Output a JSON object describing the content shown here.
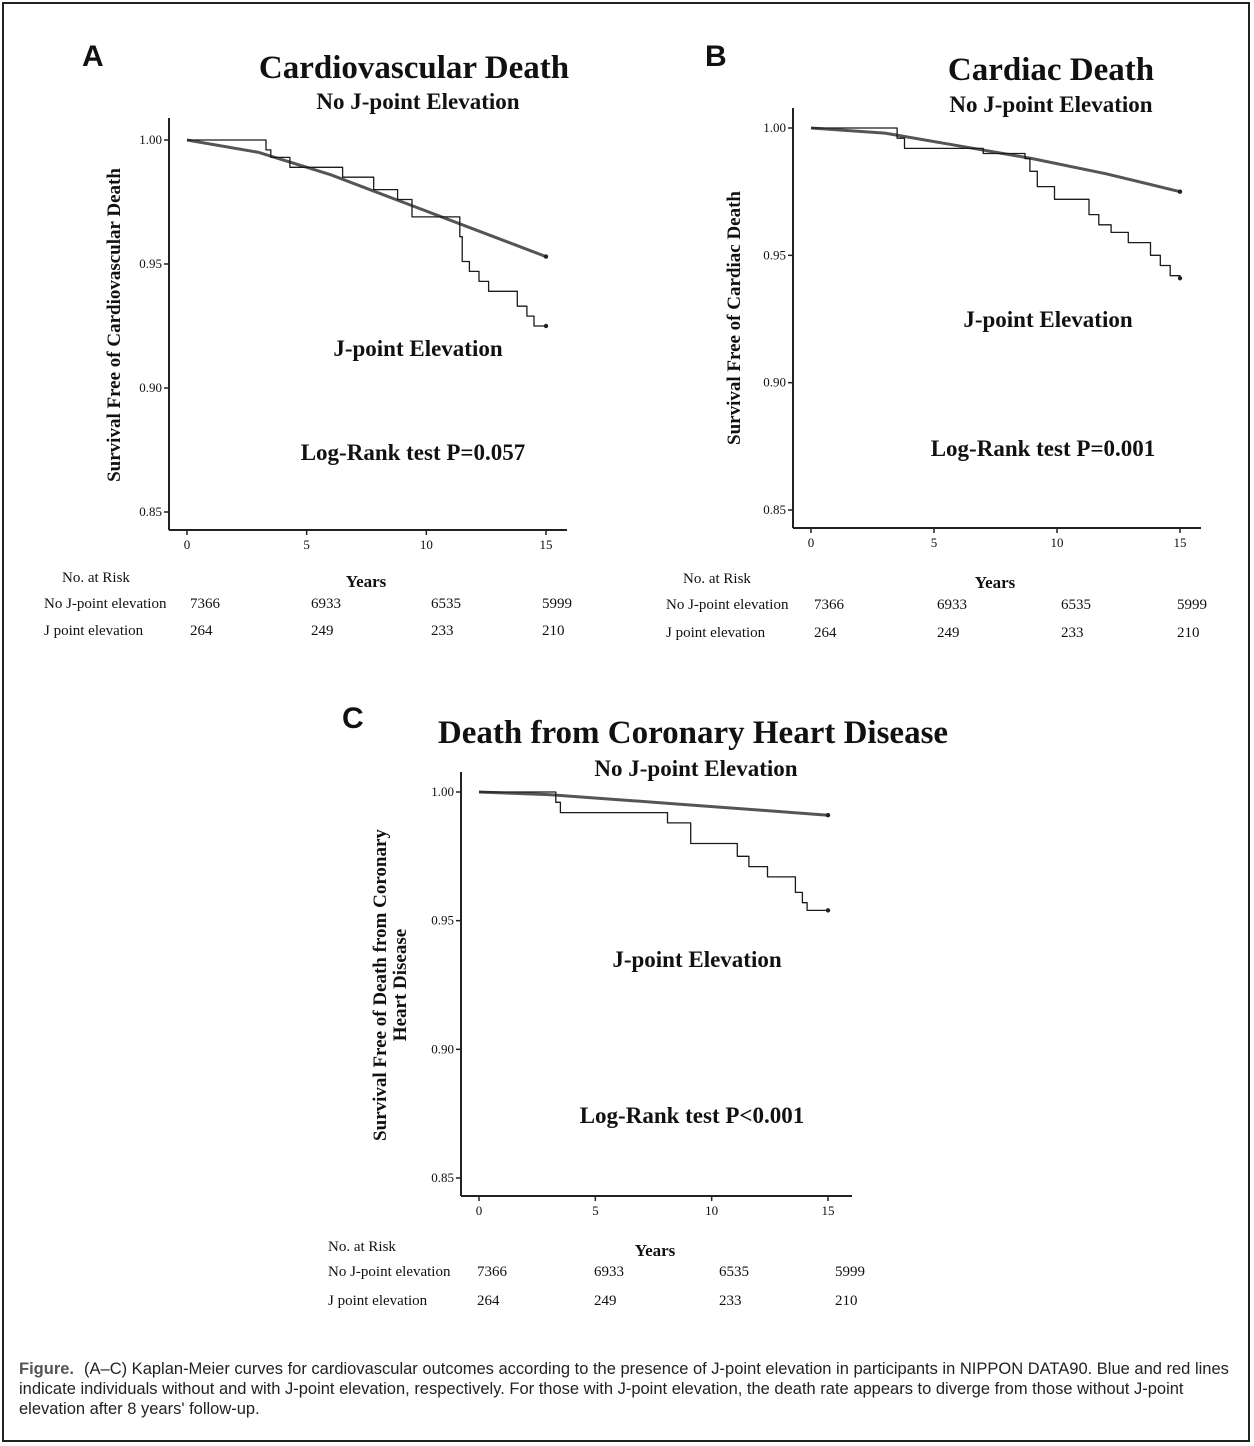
{
  "caption": {
    "lead": "Figure.",
    "text": "(A–C) Kaplan-Meier curves for cardiovascular outcomes according to the presence of J-point elevation in participants in NIPPON DATA90. Blue and red lines indicate individuals without and with J-point elevation, respectively. For those with J-point elevation, the death rate appears to diverge from those without J-point elevation after 8 years' follow-up."
  },
  "chart_data": [
    {
      "type": "line",
      "panel_label": "A",
      "title": "Cardiovascular Death",
      "xlabel": "Years",
      "ylabel": "Survival Free of Cardiovascular Death",
      "xlim": [
        0,
        15
      ],
      "ylim": [
        0.85,
        1.0
      ],
      "x_ticks": [
        "0",
        "5",
        "10",
        "15"
      ],
      "y_ticks": [
        "0.85",
        "0.90",
        "0.95",
        "1.00"
      ],
      "series": [
        {
          "name": "No J-point Elevation",
          "step": false,
          "points": [
            [
              0,
              1.0
            ],
            [
              3,
              0.995
            ],
            [
              6,
              0.986
            ],
            [
              9,
              0.975
            ],
            [
              12,
              0.964
            ],
            [
              15,
              0.953
            ]
          ]
        },
        {
          "name": "J-point Elevation",
          "step": true,
          "points": [
            [
              0,
              1.0
            ],
            [
              3.3,
              0.996
            ],
            [
              3.5,
              0.993
            ],
            [
              4.3,
              0.989
            ],
            [
              6.5,
              0.985
            ],
            [
              7.8,
              0.98
            ],
            [
              8.8,
              0.976
            ],
            [
              9.4,
              0.969
            ],
            [
              11.4,
              0.961
            ],
            [
              11.5,
              0.951
            ],
            [
              11.8,
              0.947
            ],
            [
              12.2,
              0.943
            ],
            [
              12.6,
              0.939
            ],
            [
              13.8,
              0.933
            ],
            [
              14.2,
              0.929
            ],
            [
              14.5,
              0.925
            ],
            [
              15,
              0.925
            ]
          ]
        }
      ],
      "annotations": [
        "Log-Rank test P=0.057"
      ],
      "risk_table": {
        "header": "No. at Risk",
        "rows": [
          {
            "label": "No J-point elevation",
            "values": [
              "7366",
              "6933",
              "6535",
              "5999"
            ]
          },
          {
            "label": "J point elevation",
            "values": [
              "264",
              "249",
              "233",
              "210"
            ]
          }
        ]
      }
    },
    {
      "type": "line",
      "panel_label": "B",
      "title": "Cardiac Death",
      "xlabel": "Years",
      "ylabel": "Survival Free of Cardiac Death",
      "xlim": [
        0,
        15
      ],
      "ylim": [
        0.85,
        1.0
      ],
      "x_ticks": [
        "0",
        "5",
        "10",
        "15"
      ],
      "y_ticks": [
        "0.85",
        "0.90",
        "0.95",
        "1.00"
      ],
      "series": [
        {
          "name": "No J-point Elevation",
          "step": false,
          "points": [
            [
              0,
              1.0
            ],
            [
              3,
              0.998
            ],
            [
              6,
              0.993
            ],
            [
              9,
              0.988
            ],
            [
              12,
              0.982
            ],
            [
              15,
              0.975
            ]
          ]
        },
        {
          "name": "J-point Elevation",
          "step": true,
          "points": [
            [
              0,
              1.0
            ],
            [
              3.5,
              0.996
            ],
            [
              3.8,
              0.992
            ],
            [
              7,
              0.99
            ],
            [
              8.7,
              0.988
            ],
            [
              8.9,
              0.983
            ],
            [
              9.2,
              0.977
            ],
            [
              9.9,
              0.972
            ],
            [
              11.3,
              0.966
            ],
            [
              11.7,
              0.962
            ],
            [
              12.2,
              0.959
            ],
            [
              12.9,
              0.955
            ],
            [
              13.8,
              0.95
            ],
            [
              14.2,
              0.946
            ],
            [
              14.6,
              0.942
            ],
            [
              15,
              0.941
            ]
          ]
        }
      ],
      "annotations": [
        "Log-Rank test P=0.001"
      ],
      "risk_table": {
        "header": "No. at Risk",
        "rows": [
          {
            "label": "No J-point elevation",
            "values": [
              "7366",
              "6933",
              "6535",
              "5999"
            ]
          },
          {
            "label": "J point elevation",
            "values": [
              "264",
              "249",
              "233",
              "210"
            ]
          }
        ]
      }
    },
    {
      "type": "line",
      "panel_label": "C",
      "title": "Death from Coronary Heart Disease",
      "xlabel": "Years",
      "ylabel_lines": [
        "Survival Free of Death from Coronary",
        "Heart Disease"
      ],
      "xlim": [
        0,
        15
      ],
      "ylim": [
        0.85,
        1.0
      ],
      "x_ticks": [
        "0",
        "5",
        "10",
        "15"
      ],
      "y_ticks": [
        "0.85",
        "0.90",
        "0.95",
        "1.00"
      ],
      "series": [
        {
          "name": "No J-point Elevation",
          "step": false,
          "points": [
            [
              0,
              1.0
            ],
            [
              3,
              0.999
            ],
            [
              6,
              0.997
            ],
            [
              9,
              0.995
            ],
            [
              12,
              0.993
            ],
            [
              15,
              0.991
            ]
          ]
        },
        {
          "name": "J-point Elevation",
          "step": true,
          "points": [
            [
              0,
              1.0
            ],
            [
              3.3,
              0.996
            ],
            [
              3.5,
              0.992
            ],
            [
              8.1,
              0.988
            ],
            [
              9.1,
              0.98
            ],
            [
              11.1,
              0.975
            ],
            [
              11.6,
              0.971
            ],
            [
              12.4,
              0.967
            ],
            [
              13.6,
              0.961
            ],
            [
              13.9,
              0.957
            ],
            [
              14.1,
              0.954
            ],
            [
              15,
              0.954
            ]
          ]
        }
      ],
      "annotations": [
        "Log-Rank test P<0.001"
      ],
      "risk_table": {
        "header": "No. at Risk",
        "rows": [
          {
            "label": "No J-point elevation",
            "values": [
              "7366",
              "6933",
              "6535",
              "5999"
            ]
          },
          {
            "label": "J point elevation",
            "values": [
              "264",
              "249",
              "233",
              "210"
            ]
          }
        ]
      }
    }
  ]
}
